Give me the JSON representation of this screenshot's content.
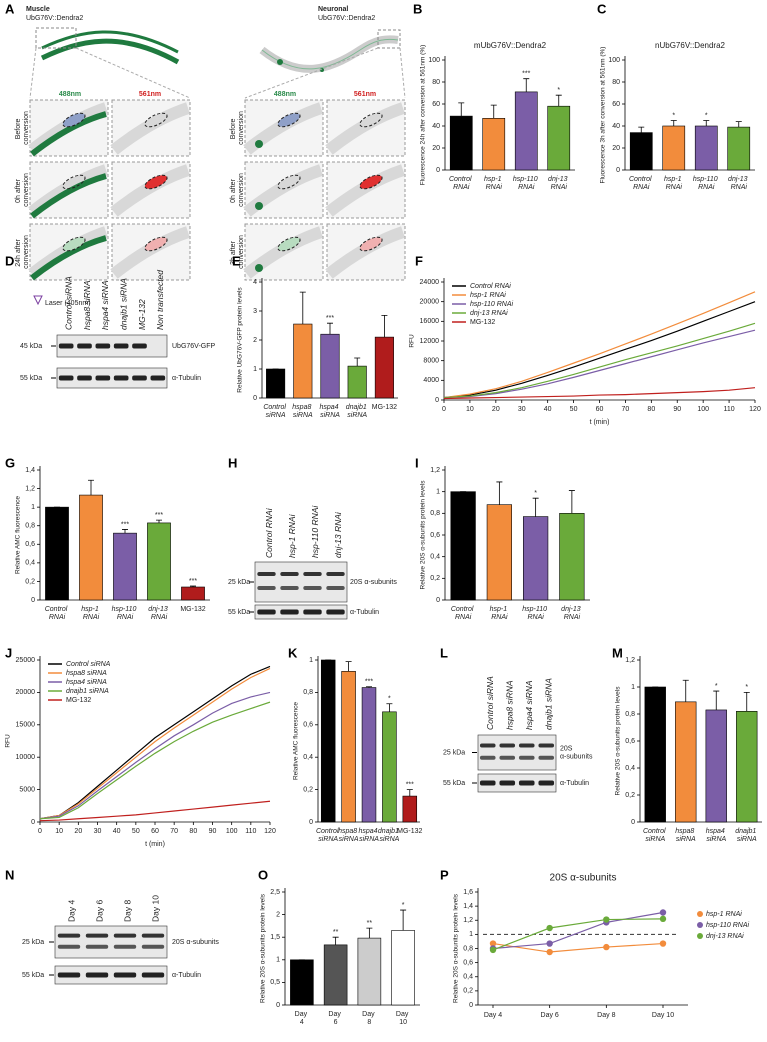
{
  "panel_a": {
    "label": "A",
    "muscle": {
      "title": "Muscle",
      "strain": "UbG76V::Dendra2",
      "channels": [
        "488nm",
        "561nm"
      ],
      "rows": [
        "Before conversion",
        "0h after conversion",
        "24h after conversion"
      ]
    },
    "neuronal": {
      "title": "Neuronal",
      "strain": "UbG76V::Dendra2",
      "channels": [
        "488nm",
        "561nm"
      ],
      "rows": [
        "Before conversion",
        "0h after conversion",
        "3h after conversion"
      ]
    },
    "laser": "Laser (405nm)"
  },
  "blots": [
    {
      "panel": "D",
      "lanes": [
        "Control siRNA",
        "hspa8 siRNA",
        "hspa4 siRNA",
        "dnajb1 siRNA",
        "MG-132",
        "Non transfected"
      ],
      "rows": [
        {
          "marker": "45 kDa",
          "label": "UbG76V-GFP"
        },
        {
          "marker": "55 kDa",
          "label": "α-Tubulin"
        }
      ]
    },
    {
      "panel": "H",
      "lanes": [
        "Control RNAi",
        "hsp-1 RNAi",
        "hsp-110 RNAi",
        "dnj-13 RNAi"
      ],
      "rows": [
        {
          "marker": "25 kDa",
          "label": "20S α-subunits"
        },
        {
          "marker": "55 kDa",
          "label": "α-Tubulin"
        }
      ]
    },
    {
      "panel": "L",
      "lanes": [
        "Control siRNA",
        "hspa8 siRNA",
        "hspa4 siRNA",
        "dnajb1 siRNA"
      ],
      "rows": [
        {
          "marker": "25 kDa",
          "label": "20S α-subunits"
        },
        {
          "marker": "55 kDa",
          "label": "α-Tubulin"
        }
      ]
    },
    {
      "panel": "N",
      "lanes": [
        "Day 4",
        "Day 6",
        "Day 8",
        "Day 10"
      ],
      "rows": [
        {
          "marker": "25 kDa",
          "label": "20S α-subunits"
        },
        {
          "marker": "55 kDa",
          "label": "α-Tubulin"
        }
      ]
    }
  ],
  "chart_data": [
    {
      "panel": "B",
      "type": "bar",
      "title": "mUbG76V::Dendra2",
      "y_label": "Fluorescence 24h after conversion at 561nm (%)",
      "categories": [
        "Control RNAi",
        "hsp-1 RNAi",
        "hsp-110 RNAi",
        "dnj-13 RNAi"
      ],
      "values": [
        49,
        47,
        71,
        58
      ],
      "errors": [
        12,
        12,
        12,
        10
      ],
      "significance": [
        null,
        null,
        "***",
        "*"
      ],
      "colors": [
        "#000000",
        "#f28c3c",
        "#7b5ea7",
        "#6aaa3a"
      ],
      "ylim": [
        0,
        100
      ],
      "yticks": [
        0,
        20,
        40,
        60,
        80,
        100
      ]
    },
    {
      "panel": "C",
      "type": "bar",
      "title": "nUbG76V::Dendra2",
      "y_label": "Fluorescence 3h after conversion at 561nm (%)",
      "categories": [
        "Control RNAi",
        "hsp-1 RNAi",
        "hsp-110 RNAi",
        "dnj-13 RNAi"
      ],
      "values": [
        34,
        40,
        40,
        39
      ],
      "errors": [
        5,
        5,
        5,
        5
      ],
      "significance": [
        null,
        "*",
        "*",
        null
      ],
      "colors": [
        "#000000",
        "#f28c3c",
        "#7b5ea7",
        "#6aaa3a"
      ],
      "ylim": [
        0,
        100
      ],
      "yticks": [
        0,
        20,
        40,
        60,
        80,
        100
      ]
    },
    {
      "panel": "E",
      "type": "bar",
      "y_label": "Relative UbG76V-GFP protein levels",
      "categories": [
        "Control siRNA",
        "hspa8 siRNA",
        "hspa4 siRNA",
        "dnajb1 siRNA",
        "MG-132"
      ],
      "values": [
        1,
        2.55,
        2.2,
        1.1,
        2.1
      ],
      "errors": [
        0,
        1.1,
        0.38,
        0.28,
        0.75
      ],
      "significance": [
        null,
        null,
        "***",
        null,
        null
      ],
      "colors": [
        "#000000",
        "#f28c3c",
        "#7b5ea7",
        "#6aaa3a",
        "#b01c1c"
      ],
      "ylim": [
        0,
        4
      ],
      "yticks": [
        0,
        1,
        2,
        3,
        4
      ]
    },
    {
      "panel": "F",
      "type": "line",
      "y_label": "RFU",
      "x_label": "t (min)",
      "legend": "top-left",
      "x": [
        0,
        10,
        20,
        30,
        40,
        50,
        60,
        70,
        80,
        90,
        100,
        110,
        120
      ],
      "series": [
        {
          "name": "Control RNAi",
          "color": "#000000",
          "values": [
            500,
            1000,
            2000,
            3400,
            5000,
            6700,
            8500,
            10300,
            12100,
            14000,
            16000,
            18000,
            20000
          ]
        },
        {
          "name": "hsp-1 RNAi",
          "color": "#f28c3c",
          "values": [
            500,
            1200,
            2300,
            3800,
            5600,
            7500,
            9400,
            11400,
            13400,
            15500,
            17600,
            19800,
            22000
          ]
        },
        {
          "name": "hsp-110 RNAi",
          "color": "#7b5ea7",
          "values": [
            500,
            700,
            1300,
            2200,
            3300,
            4600,
            6000,
            7400,
            8800,
            10200,
            11600,
            12900,
            14200
          ]
        },
        {
          "name": "dnj-13 RNAi",
          "color": "#6aaa3a",
          "values": [
            500,
            800,
            1500,
            2500,
            3800,
            5200,
            6700,
            8200,
            9600,
            11000,
            12500,
            14000,
            15600
          ]
        },
        {
          "name": "MG-132",
          "color": "#c0201e",
          "values": [
            300,
            400,
            500,
            600,
            700,
            800,
            1000,
            1100,
            1300,
            1500,
            1700,
            2000,
            2500
          ]
        }
      ],
      "xlim": [
        0,
        120
      ],
      "xticks": [
        0,
        10,
        20,
        30,
        40,
        50,
        60,
        70,
        80,
        90,
        100,
        110,
        120
      ],
      "ylim": [
        0,
        24000
      ],
      "yticks": [
        0,
        4000,
        8000,
        12000,
        16000,
        20000,
        24000
      ]
    },
    {
      "panel": "G",
      "type": "bar",
      "y_label": "Relative AMC fluorescence",
      "categories": [
        "Control RNAi",
        "hsp-1 RNAi",
        "hsp-110 RNAi",
        "dnj-13 RNAi",
        "MG-132"
      ],
      "values": [
        1,
        1.13,
        0.72,
        0.83,
        0.14
      ],
      "errors": [
        0,
        0.16,
        0.04,
        0.03,
        0.01
      ],
      "significance": [
        null,
        null,
        "***",
        "***",
        "***"
      ],
      "colors": [
        "#000000",
        "#f28c3c",
        "#7b5ea7",
        "#6aaa3a",
        "#b01c1c"
      ],
      "ylim": [
        0,
        1.4
      ],
      "yticks": [
        0,
        {
          "value": 0.2,
          "label": "0,2"
        },
        {
          "value": 0.4,
          "label": "0,4"
        },
        {
          "value": 0.6,
          "label": "0,6"
        },
        {
          "value": 0.8,
          "label": "0,8"
        },
        1,
        {
          "value": 1.2,
          "label": "1,2"
        },
        {
          "value": 1.4,
          "label": "1,4"
        }
      ]
    },
    {
      "panel": "I",
      "type": "bar",
      "y_label": "Relative 20S α-subunits protein levels",
      "categories": [
        "Control RNAi",
        "hsp-1 RNAi",
        "hsp-110 RNAi",
        "dnj-13 RNAi"
      ],
      "values": [
        1,
        0.88,
        0.77,
        0.8
      ],
      "errors": [
        0,
        0.21,
        0.17,
        0.21
      ],
      "significance": [
        null,
        null,
        "*",
        null
      ],
      "colors": [
        "#000000",
        "#f28c3c",
        "#7b5ea7",
        "#6aaa3a"
      ],
      "ylim": [
        0,
        1.2
      ],
      "yticks": [
        0,
        {
          "value": 0.2,
          "label": "0,2"
        },
        {
          "value": 0.4,
          "label": "0,4"
        },
        {
          "value": 0.6,
          "label": "0,6"
        },
        {
          "value": 0.8,
          "label": "0,8"
        },
        1,
        {
          "value": 1.2,
          "label": "1,2"
        }
      ]
    },
    {
      "panel": "J",
      "type": "line",
      "y_label": "RFU",
      "x_label": "t (min)",
      "legend": "top-left",
      "x": [
        0,
        10,
        20,
        30,
        40,
        50,
        60,
        70,
        80,
        90,
        100,
        110,
        120
      ],
      "series": [
        {
          "name": "Control siRNA",
          "color": "#000000",
          "values": [
            500,
            1000,
            3000,
            5500,
            8000,
            10500,
            13000,
            15000,
            17000,
            19000,
            21000,
            22800,
            24000
          ]
        },
        {
          "name": "hspa8 siRNA",
          "color": "#f28c3c",
          "values": [
            500,
            1000,
            2800,
            5200,
            7600,
            10000,
            12400,
            14500,
            16500,
            18500,
            20500,
            22300,
            23700
          ]
        },
        {
          "name": "hspa4 siRNA",
          "color": "#7b5ea7",
          "values": [
            500,
            900,
            2500,
            4800,
            7000,
            9200,
            11300,
            13300,
            15000,
            16800,
            18300,
            19300,
            20000
          ]
        },
        {
          "name": "dnajb1 siRNA",
          "color": "#6aaa3a",
          "values": [
            500,
            700,
            2200,
            4400,
            6500,
            8600,
            10600,
            12400,
            14000,
            15400,
            16500,
            17500,
            18500
          ]
        },
        {
          "name": "MG-132",
          "color": "#c0201e",
          "values": [
            200,
            300,
            500,
            700,
            900,
            1100,
            1400,
            1700,
            2000,
            2300,
            2600,
            2900,
            3200
          ]
        }
      ],
      "xlim": [
        0,
        120
      ],
      "xticks": [
        0,
        10,
        20,
        30,
        40,
        50,
        60,
        70,
        80,
        90,
        100,
        110,
        120
      ],
      "ylim": [
        0,
        25000
      ],
      "yticks": [
        0,
        5000,
        10000,
        15000,
        20000,
        25000
      ]
    },
    {
      "panel": "K",
      "type": "bar",
      "y_label": "Relative AMC fluorescence",
      "categories": [
        "Control siRNA",
        "hspa8 siRNA",
        "hspa4 siRNA",
        "dnajb1 siRNA",
        "MG-132"
      ],
      "values": [
        1,
        0.93,
        0.83,
        0.68,
        0.16
      ],
      "errors": [
        0,
        0.06,
        0.005,
        0.05,
        0.04
      ],
      "significance": [
        null,
        null,
        "***",
        "*",
        "***"
      ],
      "colors": [
        "#000000",
        "#f28c3c",
        "#7b5ea7",
        "#6aaa3a",
        "#b01c1c"
      ],
      "ylim": [
        0,
        1
      ],
      "yticks": [
        0,
        {
          "value": 0.2,
          "label": "0,2"
        },
        {
          "value": 0.4,
          "label": "0,4"
        },
        {
          "value": 0.6,
          "label": "0,6"
        },
        {
          "value": 0.8,
          "label": "0,8"
        },
        1
      ]
    },
    {
      "panel": "M",
      "type": "bar",
      "y_label": "Relative 20S α-subunits protein levels",
      "categories": [
        "Control siRNA",
        "hspa8 siRNA",
        "hspa4 siRNA",
        "dnajb1 siRNA"
      ],
      "values": [
        1,
        0.89,
        0.83,
        0.82
      ],
      "errors": [
        0,
        0.16,
        0.14,
        0.14
      ],
      "significance": [
        null,
        null,
        "*",
        "*"
      ],
      "colors": [
        "#000000",
        "#f28c3c",
        "#7b5ea7",
        "#6aaa3a"
      ],
      "ylim": [
        0,
        1.2
      ],
      "yticks": [
        0,
        {
          "value": 0.2,
          "label": "0,2"
        },
        {
          "value": 0.4,
          "label": "0,4"
        },
        {
          "value": 0.6,
          "label": "0,6"
        },
        {
          "value": 0.8,
          "label": "0,8"
        },
        1,
        {
          "value": 1.2,
          "label": "1,2"
        }
      ]
    },
    {
      "panel": "O",
      "type": "bar",
      "y_label": "Relative 20S α-subunits protein levels",
      "categories": [
        "Day 4",
        "Day 6",
        "Day 8",
        "Day 10"
      ],
      "values": [
        1,
        1.33,
        1.48,
        1.65
      ],
      "errors": [
        0,
        0.17,
        0.22,
        0.45
      ],
      "significance": [
        null,
        "**",
        "**",
        "*"
      ],
      "colors": [
        "#000000",
        "#555555",
        "#cccccc",
        "#ffffff"
      ],
      "ylim": [
        0,
        2.5
      ],
      "yticks": [
        0,
        {
          "value": 0.5,
          "label": "0,5"
        },
        1,
        {
          "value": 1.5,
          "label": "1,5"
        },
        2,
        {
          "value": 2.5,
          "label": "2,5"
        }
      ]
    },
    {
      "panel": "P",
      "type": "dotline",
      "title": "20S α-subunits",
      "y_label": "Relative 20S α-subunits protein levels",
      "legend": "right",
      "categories": [
        "Day 4",
        "Day 6",
        "Day 8",
        "Day 10"
      ],
      "reference_line": 1,
      "series": [
        {
          "name": "hsp-1 RNAi",
          "color": "#f28c3c",
          "values": [
            0.87,
            0.75,
            0.82,
            0.87
          ]
        },
        {
          "name": "hsp-110 RNAi",
          "color": "#7b5ea7",
          "values": [
            0.8,
            0.87,
            1.17,
            1.31
          ]
        },
        {
          "name": "dnj-13 RNAi",
          "color": "#6aaa3a",
          "values": [
            0.78,
            1.09,
            1.21,
            1.22
          ]
        }
      ],
      "ylim": [
        0,
        1.6
      ],
      "yticks": [
        0,
        {
          "value": 0.2,
          "label": "0,2"
        },
        {
          "value": 0.4,
          "label": "0,4"
        },
        {
          "value": 0.6,
          "label": "0,6"
        },
        {
          "value": 0.8,
          "label": "0,8"
        },
        1,
        {
          "value": 1.2,
          "label": "1,2"
        },
        {
          "value": 1.4,
          "label": "1,4"
        },
        {
          "value": 1.6,
          "label": "1,6"
        }
      ]
    }
  ]
}
